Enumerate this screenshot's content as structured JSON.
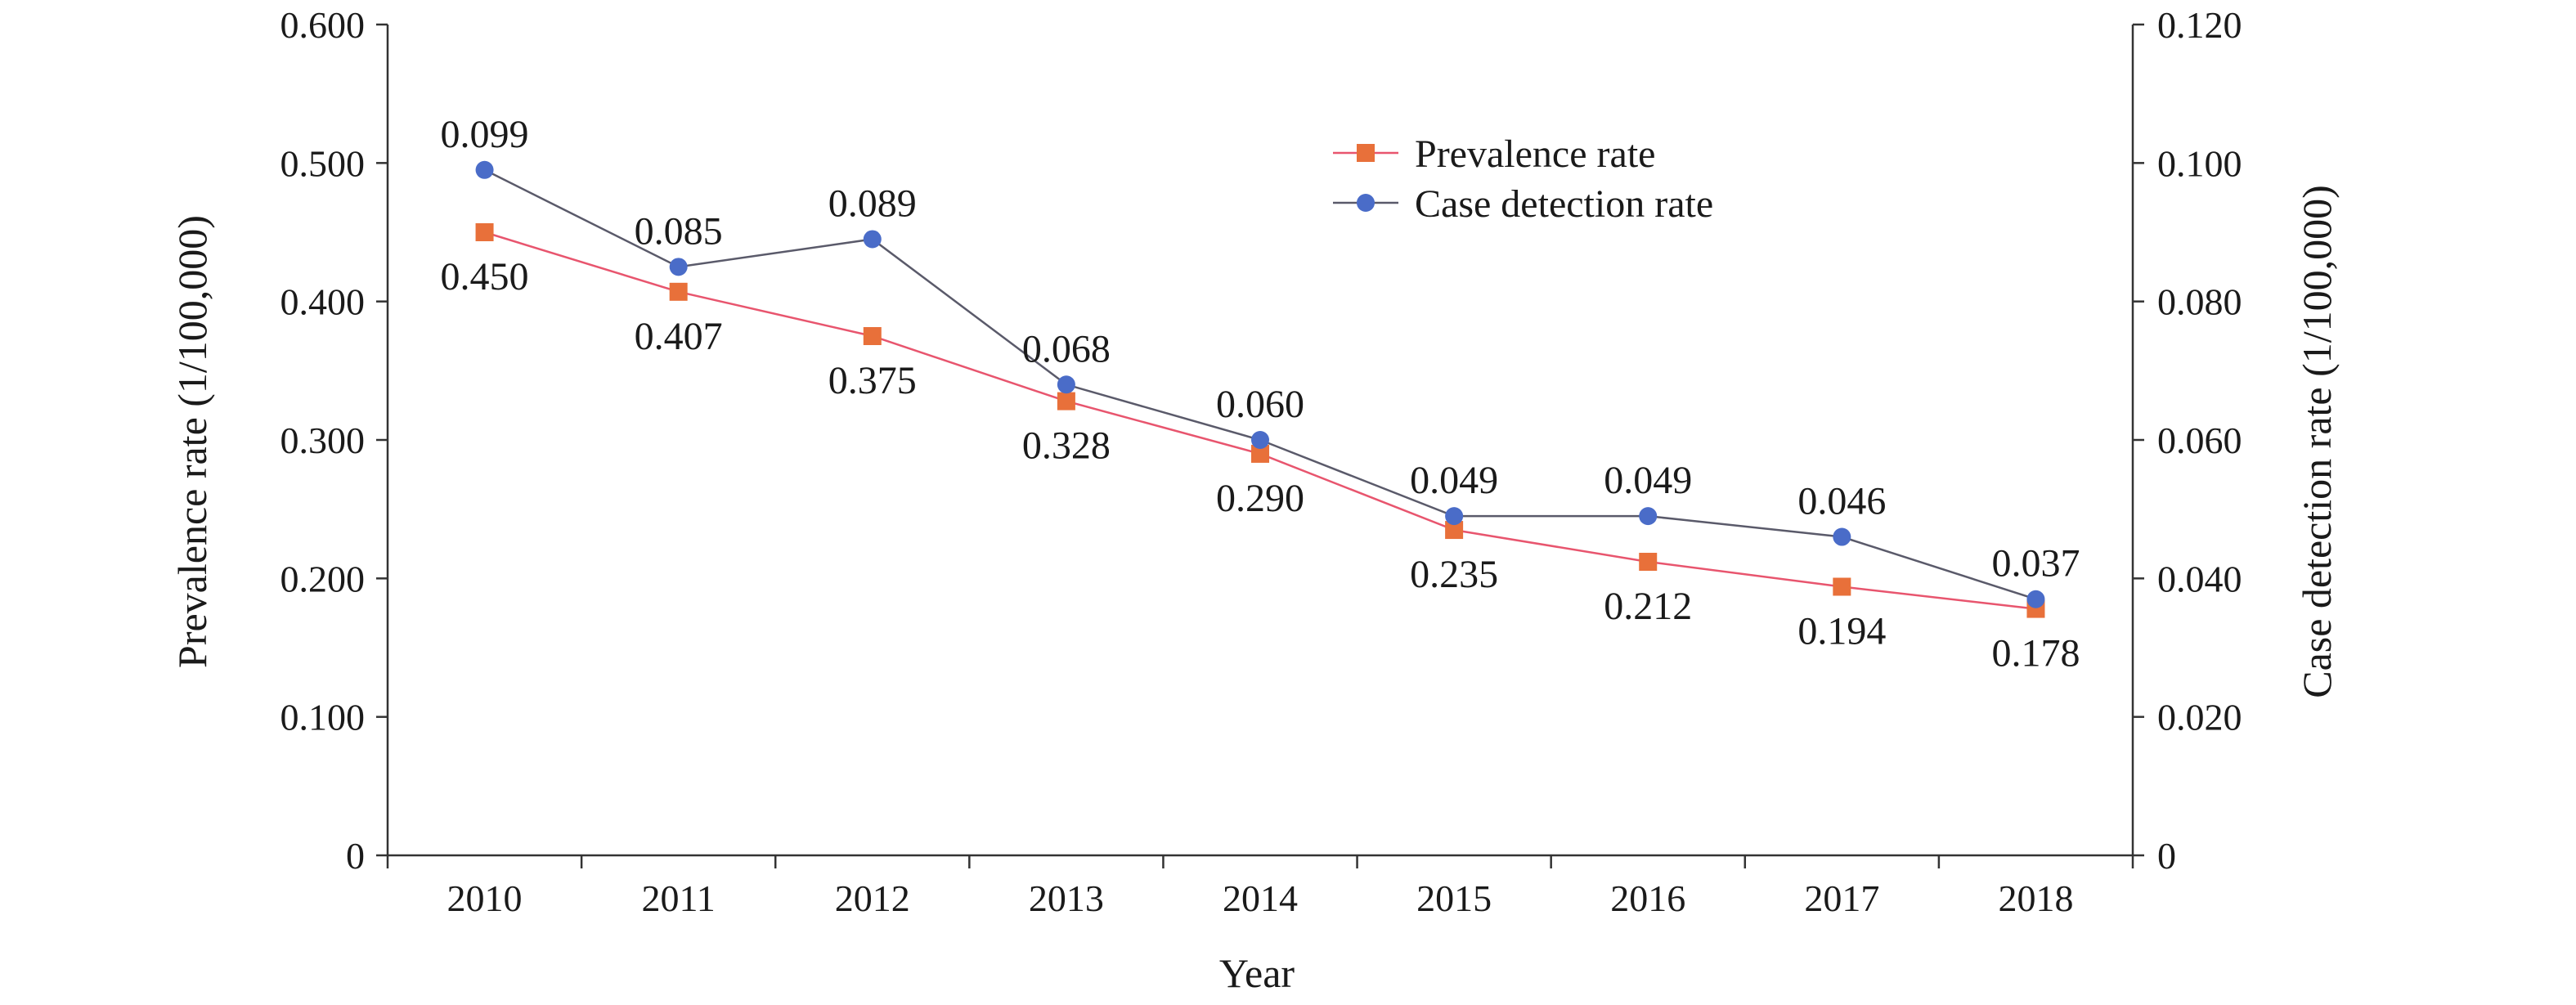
{
  "chart_data": {
    "type": "line",
    "title": "",
    "xlabel": "Year",
    "ylabel_left": "Prevalence rate (1/100,000)",
    "ylabel_right": "Case detection rate (1/100,000)",
    "categories": [
      "2010",
      "2011",
      "2012",
      "2013",
      "2014",
      "2015",
      "2016",
      "2017",
      "2018"
    ],
    "ylim_left": [
      0,
      0.6
    ],
    "ylim_right": [
      0,
      0.12
    ],
    "yticks_left": [
      "0",
      "0.100",
      "0.200",
      "0.300",
      "0.400",
      "0.500",
      "0.600"
    ],
    "yticks_right": [
      "0",
      "0.020",
      "0.040",
      "0.060",
      "0.080",
      "0.100",
      "0.120"
    ],
    "legend_position": "top-center",
    "grid": false,
    "series": [
      {
        "name": "Prevalence rate",
        "axis": "left",
        "marker": "square",
        "marker_color": "#E8703A",
        "line_color": "#E8556E",
        "values": [
          0.45,
          0.407,
          0.375,
          0.328,
          0.29,
          0.235,
          0.212,
          0.194,
          0.178
        ],
        "labels": [
          "0.450",
          "0.407",
          "0.375",
          "0.328",
          "0.290",
          "0.235",
          "0.212",
          "0.194",
          "0.178"
        ]
      },
      {
        "name": "Case detection rate",
        "axis": "right",
        "marker": "circle",
        "marker_color": "#4A6CC8",
        "line_color": "#5A5A6A",
        "values": [
          0.099,
          0.085,
          0.089,
          0.068,
          0.06,
          0.049,
          0.049,
          0.046,
          0.037
        ],
        "labels": [
          "0.099",
          "0.085",
          "0.089",
          "0.068",
          "0.060",
          "0.049",
          "0.049",
          "0.046",
          "0.037"
        ]
      }
    ]
  }
}
